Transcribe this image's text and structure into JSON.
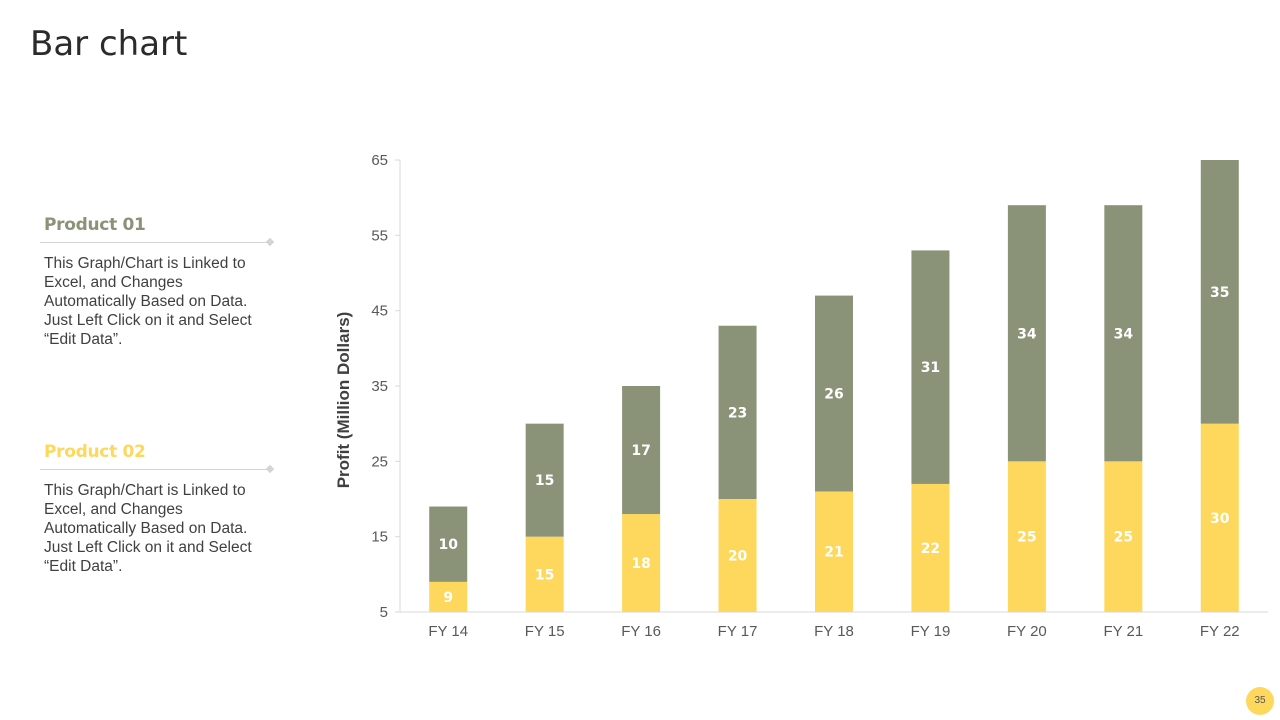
{
  "page": {
    "title": "Bar chart",
    "page_number": "35"
  },
  "products": [
    {
      "name": "Product 01",
      "color": "#8a9278",
      "description": "This Graph/Chart is Linked to Excel, and Changes Automatically Based on Data. Just Left Click on it and Select “Edit Data”."
    },
    {
      "name": "Product 02",
      "color": "#fdd85d",
      "description": "This Graph/Chart is Linked to Excel, and Changes Automatically Based on Data. Just Left Click on it and Select “Edit Data”."
    }
  ],
  "chart_data": {
    "type": "bar",
    "stacked": true,
    "title": "",
    "xlabel": "",
    "ylabel": "Profit  (Million Dollars)",
    "categories": [
      "FY 14",
      "FY 15",
      "FY 16",
      "FY 17",
      "FY 18",
      "FY 19",
      "FY 20",
      "FY 21",
      "FY 22"
    ],
    "ylim": [
      5,
      65
    ],
    "yticks": [
      5,
      15,
      25,
      35,
      45,
      55,
      65
    ],
    "grid": false,
    "legend": "none",
    "series": [
      {
        "color": "#fdd85d",
        "values": [
          9,
          15,
          18,
          20,
          21,
          22,
          25,
          25,
          30
        ]
      },
      {
        "color": "#8a9278",
        "values": [
          10,
          15,
          17,
          23,
          26,
          31,
          34,
          34,
          35
        ]
      }
    ]
  }
}
